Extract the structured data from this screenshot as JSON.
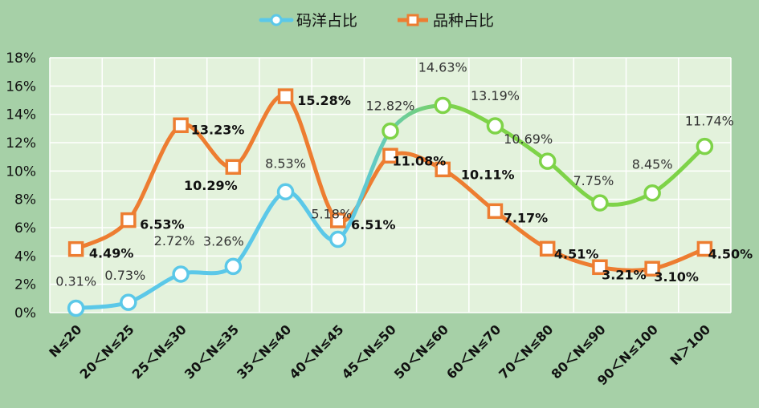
{
  "chart_data": {
    "type": "line",
    "categories": [
      "N≤20",
      "20＜N≤25",
      "25＜N≤30",
      "30＜N≤35",
      "35＜N≤40",
      "40＜N≤45",
      "45＜N≤50",
      "50＜N≤60",
      "60＜N≤70",
      "70＜N≤80",
      "80＜N≤90",
      "90＜N≤100",
      "N＞100"
    ],
    "series": [
      {
        "name": "码洋占比",
        "values": [
          0.31,
          0.73,
          2.72,
          3.26,
          8.53,
          5.18,
          12.82,
          14.63,
          13.19,
          10.69,
          7.75,
          8.45,
          11.74
        ],
        "labels": [
          "0.31%",
          "0.73%",
          "2.72%",
          "3.26%",
          "8.53%",
          "5.18%",
          "12.82%",
          "14.63%",
          "13.19%",
          "10.69%",
          "7.75%",
          "8.45%",
          "11.74%"
        ],
        "color_start": "#5bc8e8",
        "color_end": "#7ed348",
        "marker": "circle"
      },
      {
        "name": "品种占比",
        "values": [
          4.49,
          6.53,
          13.23,
          10.29,
          15.28,
          6.51,
          11.08,
          10.11,
          7.17,
          4.51,
          3.21,
          3.1,
          4.5
        ],
        "labels": [
          "4.49%",
          "6.53%",
          "13.23%",
          "10.29%",
          "15.28%",
          "6.51%",
          "11.08%",
          "10.11%",
          "7.17%",
          "4.51%",
          "3.21%",
          "3.10%",
          "4.50%"
        ],
        "color": "#ed7d31",
        "marker": "square"
      }
    ],
    "yticks": [
      "0%",
      "2%",
      "4%",
      "6%",
      "8%",
      "10%",
      "12%",
      "14%",
      "16%",
      "18%"
    ],
    "ylim": [
      0,
      18
    ],
    "grid": true,
    "legend_position": "top",
    "plot_background": "#e3f2dc",
    "background": "#a6d0a7"
  }
}
